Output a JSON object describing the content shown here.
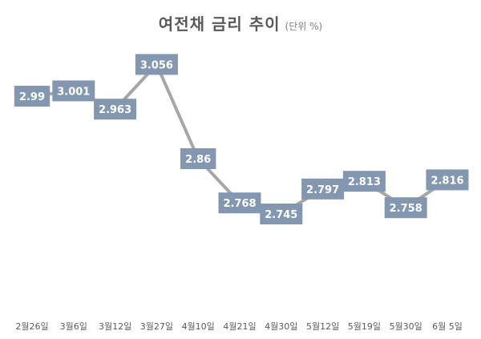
{
  "chart_data": {
    "type": "line",
    "title": "여전채 금리 추이",
    "subtitle": "(단위 %)",
    "categories": [
      "2월26일",
      "3월6일",
      "3월12일",
      "3월27일",
      "4월10일",
      "4월21일",
      "4월30일",
      "5월12일",
      "5월19일",
      "5월30일",
      "6월 5일"
    ],
    "series": [
      {
        "values": [
          2.99,
          3.001,
          2.963,
          3.056,
          2.86,
          2.768,
          2.745,
          2.797,
          2.813,
          2.758,
          2.816
        ],
        "labels": [
          "2.99",
          "3.001",
          "2.963",
          "3.056",
          "2.86",
          "2.768",
          "2.745",
          "2.797",
          "2.813",
          "2.758",
          "2.816"
        ]
      }
    ],
    "ylim": [
      2.6,
      3.1
    ],
    "grid": false,
    "legend": "none",
    "colors": {
      "line": "#a6a6a6",
      "label_box": "#8497b0",
      "label_text": "#ffffff",
      "tick_text": "#595959"
    }
  }
}
